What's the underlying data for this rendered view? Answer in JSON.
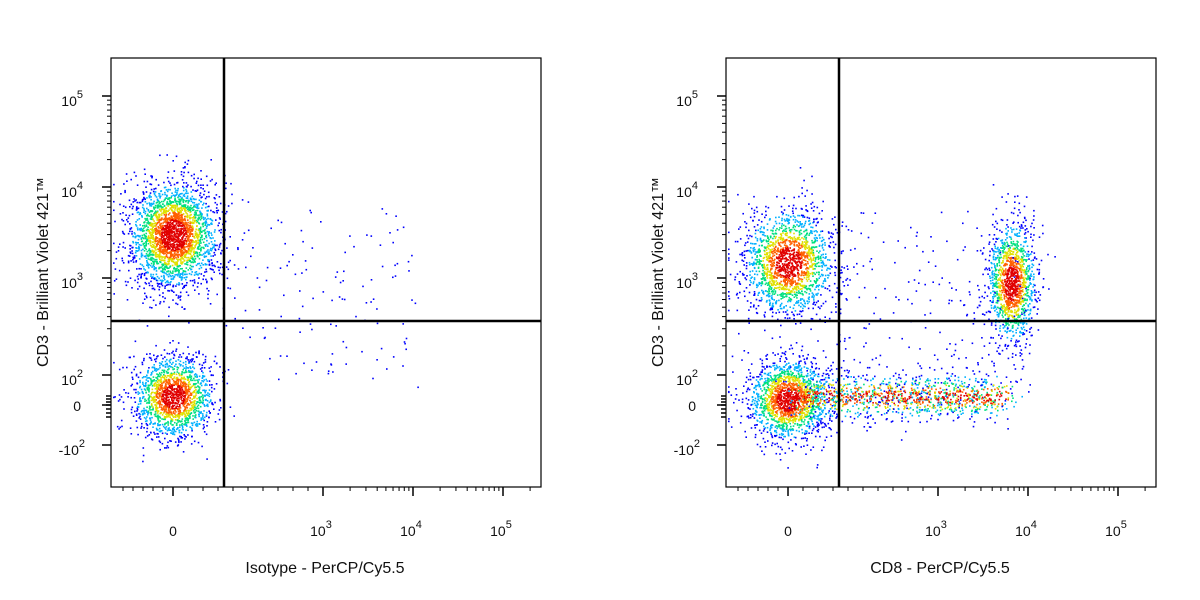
{
  "chart_data": [
    {
      "type": "scatter",
      "subtype": "flow-cytometry-density-dot-plot",
      "xlabel": "Isotype - PerCP/Cy5.5",
      "ylabel": "CD3 - Brilliant Violet 421™",
      "x_scale": "biexponential",
      "y_scale": "biexponential",
      "x_tick_labels": [
        "0",
        "10^3",
        "10^4",
        "10^5"
      ],
      "y_tick_labels": [
        "10^5",
        "10^4",
        "10^3",
        "10^2",
        "0",
        "-10^2"
      ],
      "quadrant_gate": {
        "x": 400,
        "y": 300
      },
      "grid": false,
      "populations": [
        {
          "name": "CD3+ cluster",
          "x_center": 0,
          "y_center": 3000,
          "relative_count": 0.62
        },
        {
          "name": "CD3- cluster",
          "x_center": 0,
          "y_center": 30,
          "relative_count": 0.38
        }
      ],
      "colormap": [
        "#0000ff",
        "#00b0ff",
        "#00e080",
        "#e0e000",
        "#ff6000",
        "#e00000"
      ]
    },
    {
      "type": "scatter",
      "subtype": "flow-cytometry-density-dot-plot",
      "xlabel": "CD8 - PerCP/Cy5.5",
      "ylabel": "CD3 - Brilliant Violet 421™",
      "x_scale": "biexponential",
      "y_scale": "biexponential",
      "x_tick_labels": [
        "0",
        "10^3",
        "10^4",
        "10^5"
      ],
      "y_tick_labels": [
        "10^5",
        "10^4",
        "10^3",
        "10^2",
        "0",
        "-10^2"
      ],
      "quadrant_gate": {
        "x": 400,
        "y": 300
      },
      "grid": false,
      "populations": [
        {
          "name": "CD3+ CD8- cluster",
          "x_center": 0,
          "y_center": 1500,
          "relative_count": 0.3
        },
        {
          "name": "CD3+ CD8+ cluster",
          "x_center": 6500,
          "y_center": 900,
          "relative_count": 0.22
        },
        {
          "name": "CD3- CD8- cluster",
          "x_center": 0,
          "y_center": 20,
          "relative_count": 0.28
        },
        {
          "name": "CD3- CD8 dim smear",
          "x_center": 500,
          "y_center": 30,
          "relative_count": 0.2
        }
      ],
      "colormap": [
        "#0000ff",
        "#00b0ff",
        "#00e080",
        "#e0e000",
        "#ff6000",
        "#e00000"
      ]
    }
  ]
}
